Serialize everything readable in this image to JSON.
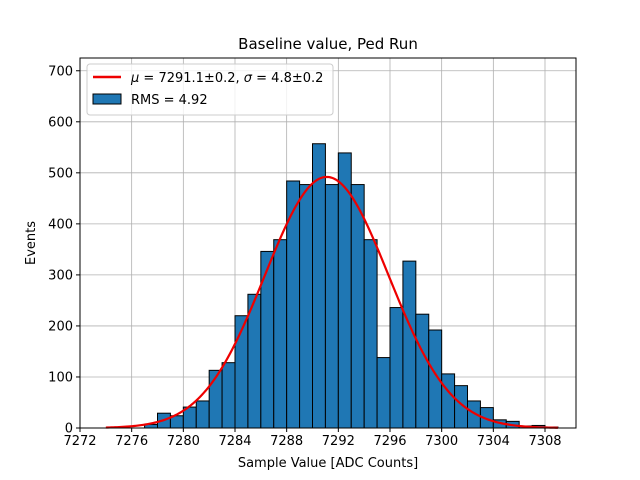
{
  "chart_data": {
    "type": "bar",
    "title": "Baseline value, Ped Run",
    "xlabel": "Sample Value [ADC Counts]",
    "ylabel": "Events",
    "xlim": [
      7272.0,
      7310.4
    ],
    "ylim": [
      0,
      725
    ],
    "grid": true,
    "legend_placement": "top-left",
    "x_ticks": [
      7272,
      7276,
      7280,
      7284,
      7288,
      7292,
      7296,
      7300,
      7304,
      7308
    ],
    "y_ticks": [
      0,
      100,
      200,
      300,
      400,
      500,
      600,
      700
    ],
    "bin_width": 1,
    "bins": [
      {
        "x0": 7277,
        "x1": 7278,
        "count": 7
      },
      {
        "x0": 7278,
        "x1": 7279,
        "count": 29
      },
      {
        "x0": 7279,
        "x1": 7280,
        "count": 24
      },
      {
        "x0": 7280,
        "x1": 7281,
        "count": 41
      },
      {
        "x0": 7281,
        "x1": 7282,
        "count": 53
      },
      {
        "x0": 7282,
        "x1": 7283,
        "count": 113
      },
      {
        "x0": 7283,
        "x1": 7284,
        "count": 128
      },
      {
        "x0": 7284,
        "x1": 7285,
        "count": 220
      },
      {
        "x0": 7285,
        "x1": 7286,
        "count": 262
      },
      {
        "x0": 7286,
        "x1": 7287,
        "count": 346
      },
      {
        "x0": 7287,
        "x1": 7288,
        "count": 369
      },
      {
        "x0": 7288,
        "x1": 7289,
        "count": 484
      },
      {
        "x0": 7289,
        "x1": 7290,
        "count": 477
      },
      {
        "x0": 7290,
        "x1": 7291,
        "count": 557
      },
      {
        "x0": 7291,
        "x1": 7292,
        "count": 477
      },
      {
        "x0": 7292,
        "x1": 7293,
        "count": 539
      },
      {
        "x0": 7293,
        "x1": 7294,
        "count": 477
      },
      {
        "x0": 7294,
        "x1": 7295,
        "count": 369
      },
      {
        "x0": 7295,
        "x1": 7296,
        "count": 138
      },
      {
        "x0": 7296,
        "x1": 7297,
        "count": 236
      },
      {
        "x0": 7297,
        "x1": 7298,
        "count": 327
      },
      {
        "x0": 7298,
        "x1": 7299,
        "count": 223
      },
      {
        "x0": 7299,
        "x1": 7300,
        "count": 192
      },
      {
        "x0": 7300,
        "x1": 7301,
        "count": 106
      },
      {
        "x0": 7301,
        "x1": 7302,
        "count": 83
      },
      {
        "x0": 7302,
        "x1": 7303,
        "count": 53
      },
      {
        "x0": 7303,
        "x1": 7304,
        "count": 40
      },
      {
        "x0": 7304,
        "x1": 7305,
        "count": 16
      },
      {
        "x0": 7305,
        "x1": 7306,
        "count": 13
      },
      {
        "x0": 7306,
        "x1": 7307,
        "count": 4
      },
      {
        "x0": 7307,
        "x1": 7308,
        "count": 5
      },
      {
        "x0": 7308,
        "x1": 7309,
        "count": 2
      }
    ],
    "fit": {
      "mu": 7291.1,
      "sigma": 4.8,
      "amplitude": 492,
      "x_range": [
        7274,
        7309
      ]
    },
    "series": [
      {
        "name": "$\\mu = 7291.1\\pm0.2$, $\\sigma = 4.8\\pm0.2$",
        "kind": "fit-line"
      },
      {
        "name": "RMS = 4.92",
        "kind": "histogram"
      }
    ],
    "legend": {
      "fit_prefix": "μ",
      "fit_middle": " = 7291.1±0.2, ",
      "fit_sigma": "σ",
      "fit_suffix": " = 4.8±0.2",
      "hist_label": "RMS = 4.92"
    },
    "colors": {
      "bar_fill": "#1f77b4",
      "bar_edge": "#000000",
      "fit_line": "#ee0000",
      "grid": "#b0b0b0"
    }
  }
}
